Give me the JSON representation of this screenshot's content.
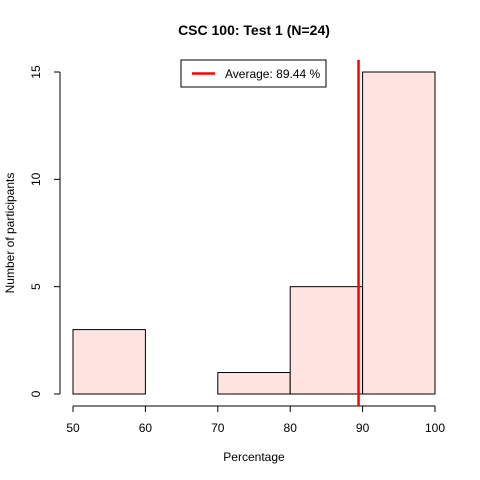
{
  "chart_data": {
    "type": "bar",
    "title": "CSC 100: Test 1 (N=24)",
    "xlabel": "Percentage",
    "ylabel": "Number of participants",
    "bins": [
      {
        "start": 50,
        "end": 60,
        "count": 3
      },
      {
        "start": 60,
        "end": 70,
        "count": 0
      },
      {
        "start": 70,
        "end": 80,
        "count": 1
      },
      {
        "start": 80,
        "end": 90,
        "count": 5
      },
      {
        "start": 90,
        "end": 100,
        "count": 15
      }
    ],
    "xlim": [
      50,
      100
    ],
    "ylim": [
      0,
      15
    ],
    "x_ticks": [
      50,
      60,
      70,
      80,
      90,
      100
    ],
    "y_ticks": [
      0,
      5,
      10,
      15
    ],
    "average": 89.44,
    "legend": {
      "label": "Average: 89.44 %",
      "position": "top-center"
    },
    "grid": false,
    "colors": {
      "bar_fill": "#ffe4e1",
      "bar_stroke": "#000000",
      "average_line": "#ff0000"
    }
  }
}
